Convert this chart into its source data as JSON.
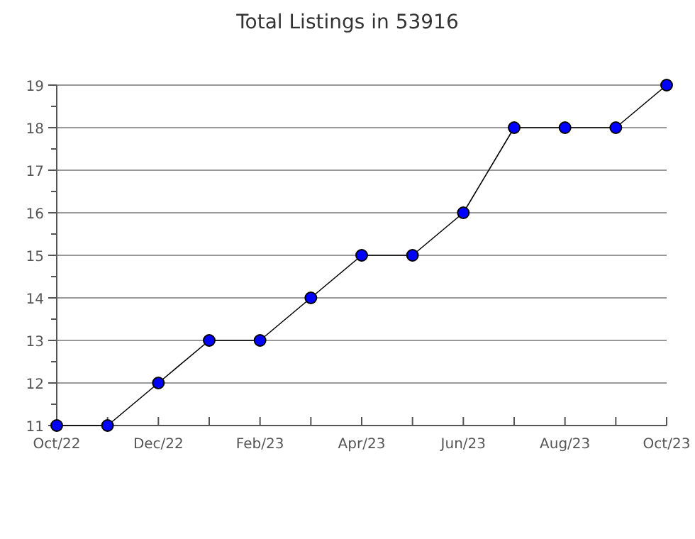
{
  "chart_data": {
    "type": "line",
    "title": "Total Listings in 53916",
    "categories": [
      "Oct/22",
      null,
      "Dec/22",
      null,
      "Feb/23",
      null,
      "Apr/23",
      null,
      "Jun/23",
      null,
      "Aug/23",
      null,
      "Oct/23"
    ],
    "series": [
      {
        "color": "#0000ff",
        "values": [
          11,
          11,
          12,
          13,
          13,
          14,
          15,
          15,
          16,
          18,
          18,
          18,
          19
        ]
      }
    ],
    "ylim": [
      11,
      19
    ],
    "yticks": [
      11,
      {
        "value": 11.5,
        "label": null
      },
      12,
      {
        "value": 12.5,
        "label": null
      },
      13,
      {
        "value": 13.5,
        "label": null
      },
      14,
      {
        "value": 14.5,
        "label": null
      },
      15,
      {
        "value": 15.5,
        "label": null
      },
      16,
      {
        "value": 16.5,
        "label": null
      },
      17,
      {
        "value": 17.5,
        "label": null
      },
      18,
      {
        "value": 18.5,
        "label": null
      },
      19
    ],
    "grid": "y",
    "marker": "circle",
    "line_style": "solid"
  }
}
